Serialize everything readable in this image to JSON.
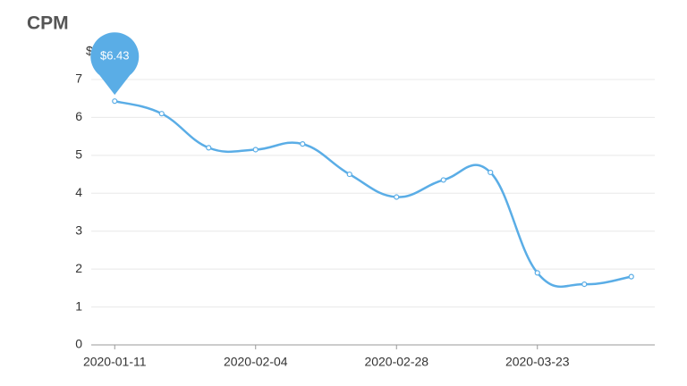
{
  "chart_data": {
    "type": "line",
    "title": "CPM",
    "y_axis_label": "$",
    "categories": [
      "2020-01-11",
      null,
      null,
      "2020-02-04",
      null,
      null,
      "2020-02-28",
      null,
      null,
      "2020-03-23",
      null,
      null
    ],
    "series": [
      {
        "name": "CPM",
        "color": "#5aade6",
        "values": [
          6.43,
          6.1,
          5.2,
          5.15,
          5.3,
          4.5,
          3.9,
          4.35,
          4.55,
          1.9,
          1.6,
          1.8
        ],
        "value_labels": [
          "$6.43",
          null,
          null,
          null,
          null,
          null,
          null,
          null,
          null,
          null,
          null,
          null
        ]
      }
    ],
    "ylim": [
      0,
      7
    ],
    "yticks": [
      0,
      1,
      2,
      3,
      4,
      5,
      6,
      7
    ],
    "grid": true,
    "smooth": true
  }
}
